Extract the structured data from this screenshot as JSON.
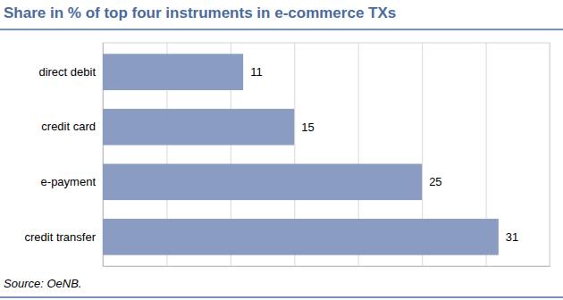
{
  "chart_data": {
    "type": "bar",
    "orientation": "horizontal",
    "title": "Share in % of top four instruments in e-commerce TXs",
    "categories": [
      "direct debit",
      "credit card",
      "e-payment",
      "credit transfer"
    ],
    "values": [
      11,
      15,
      25,
      31
    ],
    "color": "#8a9cc2",
    "xlim": [
      0,
      35
    ],
    "xticks": [
      0,
      5,
      10,
      15,
      20,
      25,
      30,
      35
    ],
    "grid": true,
    "data_labels": true,
    "tick_labels": "y",
    "source": "Source: OeNB."
  }
}
